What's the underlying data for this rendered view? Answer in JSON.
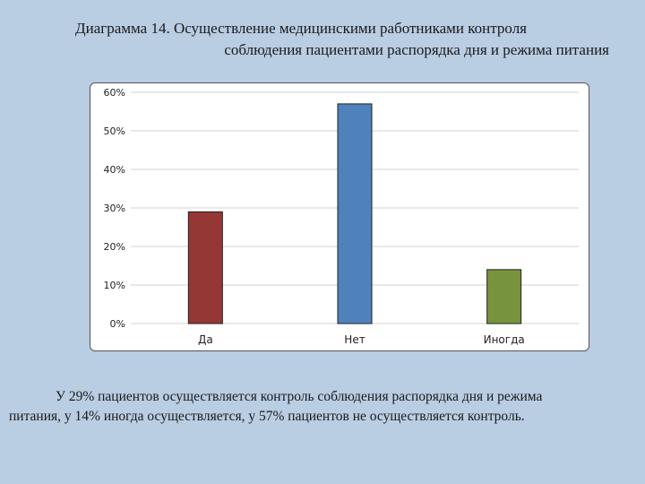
{
  "slide": {
    "title_line1": "Диаграмма 14. Осуществление медицинскими работниками контроля",
    "title_line2": "соблюдения пациентами распорядка дня и режима питания",
    "caption_line1": "У 29% пациентов осуществляется контроль соблюдения распорядка дня и режима",
    "caption_line2": "питания, у 14% иногда осуществляется, у 57% пациентов не осуществляется контроль."
  },
  "chart_data": {
    "type": "bar",
    "categories": [
      "Да",
      "Нет",
      "Иногда"
    ],
    "values": [
      29,
      57,
      14
    ],
    "bar_colors": [
      "#953735",
      "#4f81bd",
      "#77933c"
    ],
    "ylim": [
      0,
      60
    ],
    "yticks": [
      "0%",
      "10%",
      "20%",
      "30%",
      "40%",
      "50%",
      "60%"
    ],
    "grid": true,
    "legend": "none"
  }
}
